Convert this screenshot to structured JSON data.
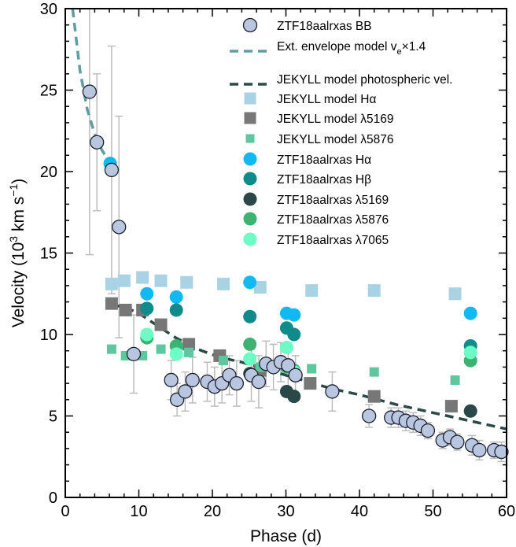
{
  "chart_data": {
    "type": "scatter",
    "title": "",
    "xlabel": "Phase (d)",
    "ylabel_parts": [
      "Velocity (10",
      "3",
      " km s",
      "−1",
      ")"
    ],
    "xlim": [
      0,
      60
    ],
    "ylim": [
      0,
      30
    ],
    "xticks": [
      0,
      10,
      20,
      30,
      40,
      50,
      60
    ],
    "yticks": [
      0,
      5,
      10,
      15,
      20,
      25,
      30
    ],
    "grid": false,
    "legend_position": "top-right",
    "series": [
      {
        "name": "ZTF18aalrxas BB",
        "marker": "circle-open",
        "color": "#b8c6e0",
        "edge": "#1e2230",
        "errcolor": "#bdbdbd",
        "points": [
          {
            "x": 3.3,
            "y": 24.9,
            "err": 10.0
          },
          {
            "x": 4.3,
            "y": 21.8,
            "err": 4.2
          },
          {
            "x": 6.3,
            "y": 20.1,
            "err": 7.6
          },
          {
            "x": 7.3,
            "y": 16.6,
            "err": 6.8
          },
          {
            "x": 9.3,
            "y": 8.8,
            "err": 2.4
          },
          {
            "x": 14.4,
            "y": 7.2,
            "err": 1.2
          },
          {
            "x": 15.2,
            "y": 6.0,
            "err": 1.0
          },
          {
            "x": 16.3,
            "y": 6.5,
            "err": 1.2
          },
          {
            "x": 17.3,
            "y": 7.2,
            "err": 1.4
          },
          {
            "x": 19.3,
            "y": 7.1,
            "err": 1.2
          },
          {
            "x": 20.3,
            "y": 6.8,
            "err": 1.2
          },
          {
            "x": 21.3,
            "y": 7.0,
            "err": 1.2
          },
          {
            "x": 22.3,
            "y": 7.5,
            "err": 1.2
          },
          {
            "x": 23.3,
            "y": 7.0,
            "err": 1.4
          },
          {
            "x": 25.3,
            "y": 7.5,
            "err": 1.6
          },
          {
            "x": 26.3,
            "y": 7.1,
            "err": 1.6
          },
          {
            "x": 27.3,
            "y": 8.2,
            "err": 1.4
          },
          {
            "x": 28.3,
            "y": 8.0,
            "err": 1.4
          },
          {
            "x": 29.3,
            "y": 8.3,
            "err": 1.2
          },
          {
            "x": 30.3,
            "y": 8.1,
            "err": 1.4
          },
          {
            "x": 31.3,
            "y": 7.5,
            "err": 1.2
          },
          {
            "x": 36.3,
            "y": 6.5,
            "err": 1.2
          },
          {
            "x": 41.3,
            "y": 5.0,
            "err": 0.7
          },
          {
            "x": 44.3,
            "y": 4.9,
            "err": 0.6
          },
          {
            "x": 45.3,
            "y": 4.9,
            "err": 0.6
          },
          {
            "x": 46.3,
            "y": 4.7,
            "err": 0.6
          },
          {
            "x": 47.3,
            "y": 4.6,
            "err": 0.6
          },
          {
            "x": 48.3,
            "y": 4.4,
            "err": 0.6
          },
          {
            "x": 49.3,
            "y": 4.1,
            "err": 0.5
          },
          {
            "x": 51.3,
            "y": 3.5,
            "err": 0.5
          },
          {
            "x": 52.3,
            "y": 3.7,
            "err": 0.5
          },
          {
            "x": 53.3,
            "y": 3.4,
            "err": 0.5
          },
          {
            "x": 55.3,
            "y": 3.2,
            "err": 0.6
          },
          {
            "x": 56.3,
            "y": 2.9,
            "err": 0.6
          },
          {
            "x": 58.3,
            "y": 2.9,
            "err": 0.5
          },
          {
            "x": 59.3,
            "y": 2.8,
            "err": 0.6
          }
        ]
      },
      {
        "name": "Ext. envelope model v",
        "name_sub": "e",
        "name_suffix": "×1.4",
        "marker": "dashed-line",
        "color": "#5f9ea0",
        "points": [
          {
            "x": 1.0,
            "y": 30.0
          },
          {
            "x": 2.0,
            "y": 26.2
          },
          {
            "x": 3.0,
            "y": 23.8
          },
          {
            "x": 4.0,
            "y": 22.3
          },
          {
            "x": 5.0,
            "y": 21.3
          },
          {
            "x": 6.0,
            "y": 20.6
          }
        ]
      },
      {
        "name": "JEKYLL model photospheric vel.",
        "marker": "dashed-line",
        "color": "#2a4a48",
        "points": [
          {
            "x": 6.3,
            "y": 11.8
          },
          {
            "x": 8.0,
            "y": 11.7
          },
          {
            "x": 10.0,
            "y": 11.3
          },
          {
            "x": 12.0,
            "y": 10.7
          },
          {
            "x": 15.0,
            "y": 9.8
          },
          {
            "x": 18.0,
            "y": 9.1
          },
          {
            "x": 21.0,
            "y": 8.6
          },
          {
            "x": 24.0,
            "y": 8.3
          },
          {
            "x": 27.0,
            "y": 7.9
          },
          {
            "x": 30.0,
            "y": 7.5
          },
          {
            "x": 33.0,
            "y": 7.1
          },
          {
            "x": 36.0,
            "y": 6.7
          },
          {
            "x": 40.0,
            "y": 6.3
          },
          {
            "x": 45.0,
            "y": 5.7
          },
          {
            "x": 50.0,
            "y": 5.2
          },
          {
            "x": 55.0,
            "y": 4.7
          },
          {
            "x": 60.0,
            "y": 4.2
          }
        ]
      },
      {
        "name": "JEKYLL model Hα",
        "marker": "square",
        "size": 16,
        "color": "#a9d3e5",
        "points": [
          {
            "x": 6.3,
            "y": 13.1
          },
          {
            "x": 8.0,
            "y": 13.3
          },
          {
            "x": 10.5,
            "y": 13.5
          },
          {
            "x": 13.0,
            "y": 13.3
          },
          {
            "x": 16.5,
            "y": 13.2
          },
          {
            "x": 21.5,
            "y": 13.1
          },
          {
            "x": 26.5,
            "y": 12.9
          },
          {
            "x": 33.5,
            "y": 12.7
          },
          {
            "x": 42.0,
            "y": 12.7
          },
          {
            "x": 53.0,
            "y": 12.5
          }
        ]
      },
      {
        "name": "JEKYLL model λ5169",
        "marker": "square",
        "size": 16,
        "color": "#777777",
        "points": [
          {
            "x": 6.3,
            "y": 11.9
          },
          {
            "x": 8.2,
            "y": 11.5
          },
          {
            "x": 10.5,
            "y": 11.5
          },
          {
            "x": 13.0,
            "y": 10.6
          },
          {
            "x": 16.8,
            "y": 9.4
          },
          {
            "x": 21.0,
            "y": 8.7
          },
          {
            "x": 26.5,
            "y": 7.8
          },
          {
            "x": 33.3,
            "y": 7.0
          },
          {
            "x": 42.0,
            "y": 6.2
          },
          {
            "x": 52.5,
            "y": 5.6
          }
        ]
      },
      {
        "name": "JEKYLL model λ5876",
        "marker": "square",
        "size": 12,
        "color": "#5ec7a0",
        "points": [
          {
            "x": 6.3,
            "y": 9.1
          },
          {
            "x": 8.2,
            "y": 8.7
          },
          {
            "x": 10.5,
            "y": 8.7
          },
          {
            "x": 13.0,
            "y": 9.1
          },
          {
            "x": 16.8,
            "y": 8.9
          },
          {
            "x": 21.5,
            "y": 8.4
          },
          {
            "x": 26.5,
            "y": 8.0
          },
          {
            "x": 33.5,
            "y": 7.9
          },
          {
            "x": 42.0,
            "y": 7.7
          },
          {
            "x": 53.0,
            "y": 7.2
          }
        ]
      },
      {
        "name": "ZTF18aalrxas Hα",
        "marker": "circle",
        "color": "#11b9f2",
        "points": [
          {
            "x": 6.1,
            "y": 20.5
          },
          {
            "x": 11.1,
            "y": 12.5
          },
          {
            "x": 15.1,
            "y": 12.3
          },
          {
            "x": 25.1,
            "y": 13.2
          },
          {
            "x": 30.1,
            "y": 11.3
          },
          {
            "x": 31.1,
            "y": 11.2
          },
          {
            "x": 55.1,
            "y": 11.3
          }
        ]
      },
      {
        "name": "ZTF18aalrxas Hβ",
        "marker": "circle",
        "color": "#0f8b8b",
        "points": [
          {
            "x": 11.1,
            "y": 11.6
          },
          {
            "x": 15.1,
            "y": 11.5
          },
          {
            "x": 25.1,
            "y": 11.1
          },
          {
            "x": 30.1,
            "y": 10.4
          },
          {
            "x": 31.1,
            "y": 10.0
          },
          {
            "x": 55.1,
            "y": 9.3
          }
        ]
      },
      {
        "name": "ZTF18aalrxas λ5169",
        "marker": "circle",
        "color": "#2a4848",
        "points": [
          {
            "x": 25.1,
            "y": 7.6
          },
          {
            "x": 30.1,
            "y": 6.5
          },
          {
            "x": 31.1,
            "y": 6.2
          },
          {
            "x": 55.1,
            "y": 5.3
          }
        ]
      },
      {
        "name": "ZTF18aalrxas λ5876",
        "marker": "circle",
        "color": "#3cb371",
        "points": [
          {
            "x": 11.1,
            "y": 9.8
          },
          {
            "x": 15.1,
            "y": 9.3
          },
          {
            "x": 25.1,
            "y": 9.4
          },
          {
            "x": 30.1,
            "y": 8.0
          },
          {
            "x": 31.1,
            "y": 7.8
          },
          {
            "x": 55.1,
            "y": 8.4
          }
        ]
      },
      {
        "name": "ZTF18aalrxas λ7065",
        "marker": "circle",
        "color": "#6dfcc6",
        "points": [
          {
            "x": 11.1,
            "y": 10.0
          },
          {
            "x": 15.1,
            "y": 8.8
          },
          {
            "x": 25.1,
            "y": 8.5
          },
          {
            "x": 30.1,
            "y": 9.2
          },
          {
            "x": 31.1,
            "y": 7.7
          },
          {
            "x": 55.1,
            "y": 8.9
          }
        ]
      }
    ]
  }
}
